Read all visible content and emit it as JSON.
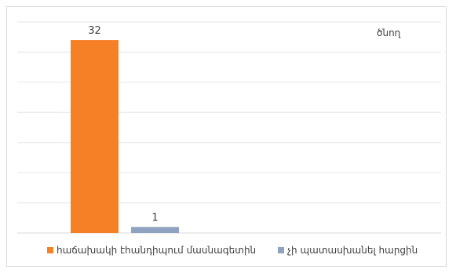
{
  "chart_data": {
    "type": "bar",
    "title": "",
    "top_label": "ծնող",
    "series": [
      {
        "name": "հաճախակի  էհանդիպում  մասնագետին",
        "value": 32,
        "color": "#F58026"
      },
      {
        "name": "չի պատասխանել  հարցին",
        "value": 1,
        "color": "#8DA3BF"
      }
    ],
    "ylim": [
      0,
      35
    ],
    "grid": true,
    "legend_position": "bottom-left"
  }
}
